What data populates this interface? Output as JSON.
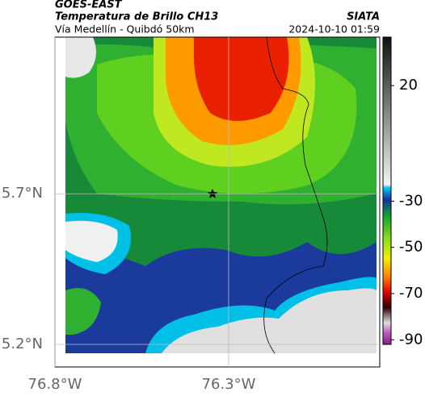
{
  "chart_data": {
    "type": "map",
    "satellite": "GOES-EAST",
    "title": "Temperatura de Brillo CH13",
    "source": "SIATA",
    "subtitle": "Vía Medellín - Quibdó 50km",
    "timestamp": "2024-10-10 01:59",
    "xlim": [
      -76.8,
      -75.865
    ],
    "ylim": [
      5.125,
      6.22
    ],
    "xticks": [
      {
        "value": -76.8,
        "label": "76.8°W"
      },
      {
        "value": -76.3,
        "label": "76.3°W"
      }
    ],
    "yticks": [
      {
        "value": 5.2,
        "label": "5.2°N"
      },
      {
        "value": 5.7,
        "label": "5.7°N"
      }
    ],
    "grid": true,
    "colorbar": {
      "lim": [
        -92,
        41
      ],
      "ticks": [
        20,
        -30,
        -50,
        -70,
        -90
      ]
    }
  }
}
